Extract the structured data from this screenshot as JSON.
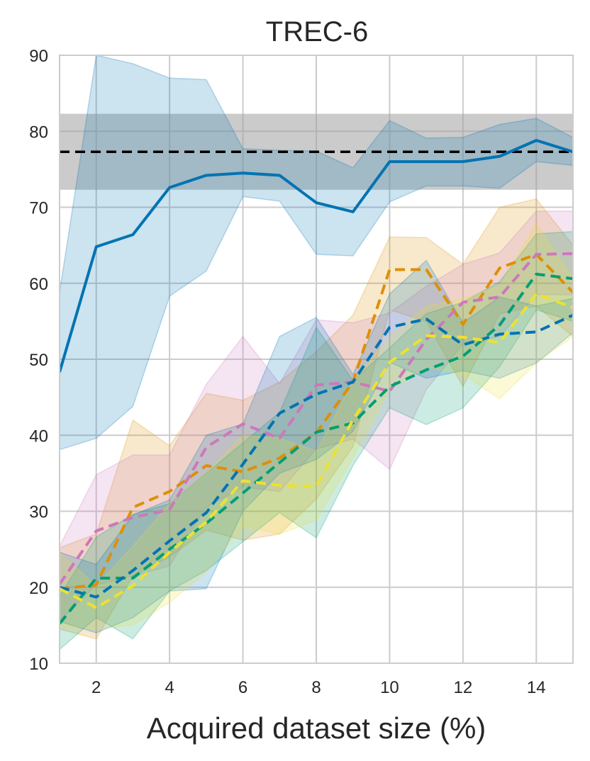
{
  "chart_data": {
    "type": "line",
    "title": "TREC-6",
    "xlabel": "Acquired dataset size (%)",
    "ylabel": "",
    "xlim": [
      1,
      15
    ],
    "ylim": [
      10,
      90
    ],
    "xticks": [
      2,
      4,
      6,
      8,
      10,
      12,
      14
    ],
    "yticks": [
      10,
      20,
      30,
      40,
      50,
      60,
      70,
      80,
      90
    ],
    "grid": true,
    "x": [
      1,
      2,
      3,
      4,
      5,
      6,
      7,
      8,
      9,
      10,
      11,
      12,
      13,
      14,
      15
    ],
    "reference": {
      "value": 77.3,
      "lower": 72.3,
      "upper": 82.3,
      "color": "#000000",
      "band_color": "#a0a0a0",
      "style": "dashed"
    },
    "series": [
      {
        "color": "#0173b2",
        "style": "solid",
        "values": [
          48.3,
          64.8,
          66.4,
          72.6,
          74.2,
          74.5,
          74.2,
          70.6,
          69.4,
          76.0,
          76.0,
          76.0,
          76.7,
          78.8,
          77.3
        ],
        "lower": [
          38.1,
          39.6,
          43.8,
          58.3,
          61.6,
          71.4,
          70.8,
          63.8,
          63.6,
          70.7,
          72.8,
          72.8,
          72.5,
          76.0,
          75.5
        ],
        "upper": [
          58.8,
          90.0,
          88.9,
          87.0,
          86.8,
          77.7,
          77.5,
          77.4,
          75.2,
          81.4,
          79.1,
          79.2,
          80.9,
          81.7,
          79.2
        ]
      },
      {
        "color": "#de8f05",
        "style": "dashed",
        "values": [
          19.8,
          20.3,
          30.5,
          32.6,
          36.0,
          35.2,
          37.0,
          40.3,
          47.0,
          61.8,
          61.8,
          54.6,
          62.0,
          63.8,
          58.8
        ],
        "lower": [
          14.5,
          13.2,
          21.5,
          24.0,
          27.5,
          26.2,
          27.0,
          31.6,
          38.5,
          56.5,
          55.0,
          46.4,
          56.0,
          57.0,
          53.0
        ],
        "upper": [
          25.2,
          27.0,
          42.0,
          38.6,
          45.5,
          44.6,
          47.0,
          51.0,
          55.8,
          66.1,
          66.0,
          62.5,
          70.0,
          71.1,
          65.0
        ]
      },
      {
        "color": "#cc78bc",
        "style": "dashed",
        "values": [
          20.4,
          27.4,
          29.2,
          30.2,
          38.4,
          41.5,
          39.6,
          46.6,
          47.0,
          45.8,
          52.6,
          57.5,
          58.2,
          63.8,
          63.9
        ],
        "lower": [
          15.6,
          20.3,
          21.5,
          22.8,
          30.5,
          33.2,
          32.6,
          38.2,
          39.5,
          35.5,
          46.0,
          52.0,
          53.0,
          58.5,
          58.5
        ],
        "upper": [
          25.4,
          34.8,
          37.4,
          37.4,
          46.7,
          53.0,
          46.8,
          55.2,
          54.8,
          56.1,
          59.6,
          62.5,
          64.0,
          69.5,
          69.5
        ]
      },
      {
        "color": "#029e73",
        "style": "dashed",
        "values": [
          15.2,
          21.2,
          21.2,
          25.0,
          28.4,
          32.4,
          36.4,
          40.4,
          41.6,
          46.4,
          48.6,
          50.4,
          54.5,
          61.2,
          60.6
        ],
        "lower": [
          11.8,
          16.0,
          13.2,
          19.5,
          22.2,
          26.0,
          29.8,
          26.5,
          36.0,
          43.6,
          41.4,
          43.6,
          49.0,
          56.5,
          55.0
        ],
        "upper": [
          18.8,
          26.6,
          29.6,
          31.0,
          35.0,
          39.0,
          43.0,
          54.2,
          47.2,
          51.5,
          56.0,
          57.5,
          60.2,
          66.5,
          66.8
        ]
      },
      {
        "color": "#0173b2",
        "style": "dashed",
        "values": [
          20.0,
          18.7,
          22.2,
          26.1,
          29.8,
          36.2,
          42.9,
          45.4,
          47.0,
          54.2,
          55.3,
          51.9,
          53.3,
          53.6,
          55.8
        ],
        "lower": [
          15.5,
          14.0,
          16.0,
          19.5,
          19.8,
          30.0,
          35.0,
          36.8,
          40.5,
          49.6,
          47.5,
          48.5,
          47.5,
          49.5,
          53.5
        ],
        "upper": [
          24.6,
          23.0,
          29.5,
          31.5,
          40.0,
          41.5,
          53.0,
          55.5,
          48.0,
          58.6,
          63.0,
          54.8,
          58.2,
          57.0,
          58.0
        ]
      },
      {
        "color": "#ece133",
        "style": "dashed",
        "values": [
          19.8,
          17.3,
          20.2,
          24.6,
          28.6,
          34.0,
          33.4,
          33.3,
          42.0,
          49.6,
          53.1,
          52.9,
          52.2,
          58.6,
          56.8
        ],
        "lower": [
          15.0,
          14.5,
          15.0,
          18.0,
          22.0,
          28.0,
          27.0,
          28.8,
          37.0,
          46.0,
          49.0,
          48.0,
          44.8,
          49.5,
          53.0
        ],
        "upper": [
          24.5,
          20.2,
          25.4,
          31.0,
          35.0,
          40.0,
          39.6,
          37.9,
          47.0,
          53.0,
          57.0,
          58.0,
          59.6,
          67.8,
          60.6
        ]
      }
    ]
  }
}
